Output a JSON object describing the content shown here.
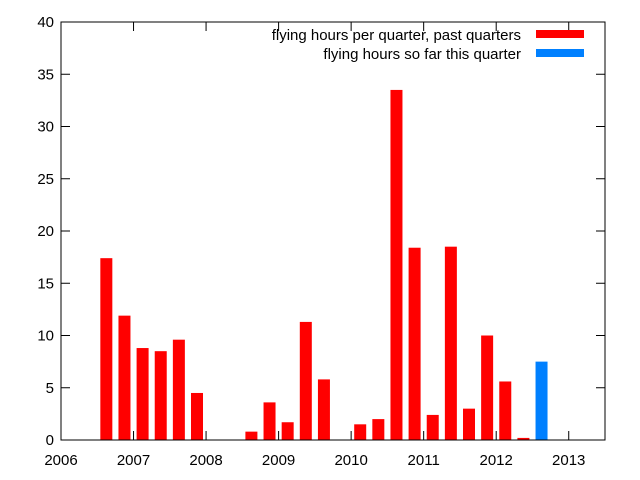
{
  "chart_data": {
    "type": "bar",
    "title": "",
    "xlabel": "",
    "ylabel": "",
    "xlim": [
      2006,
      2013.5
    ],
    "ylim": [
      0,
      40
    ],
    "grid": false,
    "legend_position": "top-right",
    "x_ticks": [
      2006,
      2007,
      2008,
      2009,
      2010,
      2011,
      2012,
      2013
    ],
    "y_ticks": [
      0,
      5,
      10,
      15,
      20,
      25,
      30,
      35,
      40
    ],
    "series": [
      {
        "name": "flying hours per quarter, past quarters",
        "color": "#ff0000",
        "points": [
          {
            "x": 2006.625,
            "y": 17.4
          },
          {
            "x": 2006.875,
            "y": 11.9
          },
          {
            "x": 2007.125,
            "y": 8.8
          },
          {
            "x": 2007.375,
            "y": 8.5
          },
          {
            "x": 2007.625,
            "y": 9.6
          },
          {
            "x": 2007.875,
            "y": 4.5
          },
          {
            "x": 2008.125,
            "y": 0
          },
          {
            "x": 2008.375,
            "y": 0
          },
          {
            "x": 2008.625,
            "y": 0.8
          },
          {
            "x": 2008.875,
            "y": 3.6
          },
          {
            "x": 2009.125,
            "y": 1.7
          },
          {
            "x": 2009.375,
            "y": 11.3
          },
          {
            "x": 2009.625,
            "y": 5.8
          },
          {
            "x": 2009.875,
            "y": 0
          },
          {
            "x": 2010.125,
            "y": 1.5
          },
          {
            "x": 2010.375,
            "y": 2.0
          },
          {
            "x": 2010.625,
            "y": 33.5
          },
          {
            "x": 2010.875,
            "y": 18.4
          },
          {
            "x": 2011.125,
            "y": 2.4
          },
          {
            "x": 2011.375,
            "y": 18.5
          },
          {
            "x": 2011.625,
            "y": 3.0
          },
          {
            "x": 2011.875,
            "y": 10.0
          },
          {
            "x": 2012.125,
            "y": 5.6
          },
          {
            "x": 2012.375,
            "y": 0.2
          }
        ]
      },
      {
        "name": "flying hours so far this quarter",
        "color": "#0080ff",
        "points": [
          {
            "x": 2012.625,
            "y": 7.5
          }
        ]
      }
    ]
  }
}
